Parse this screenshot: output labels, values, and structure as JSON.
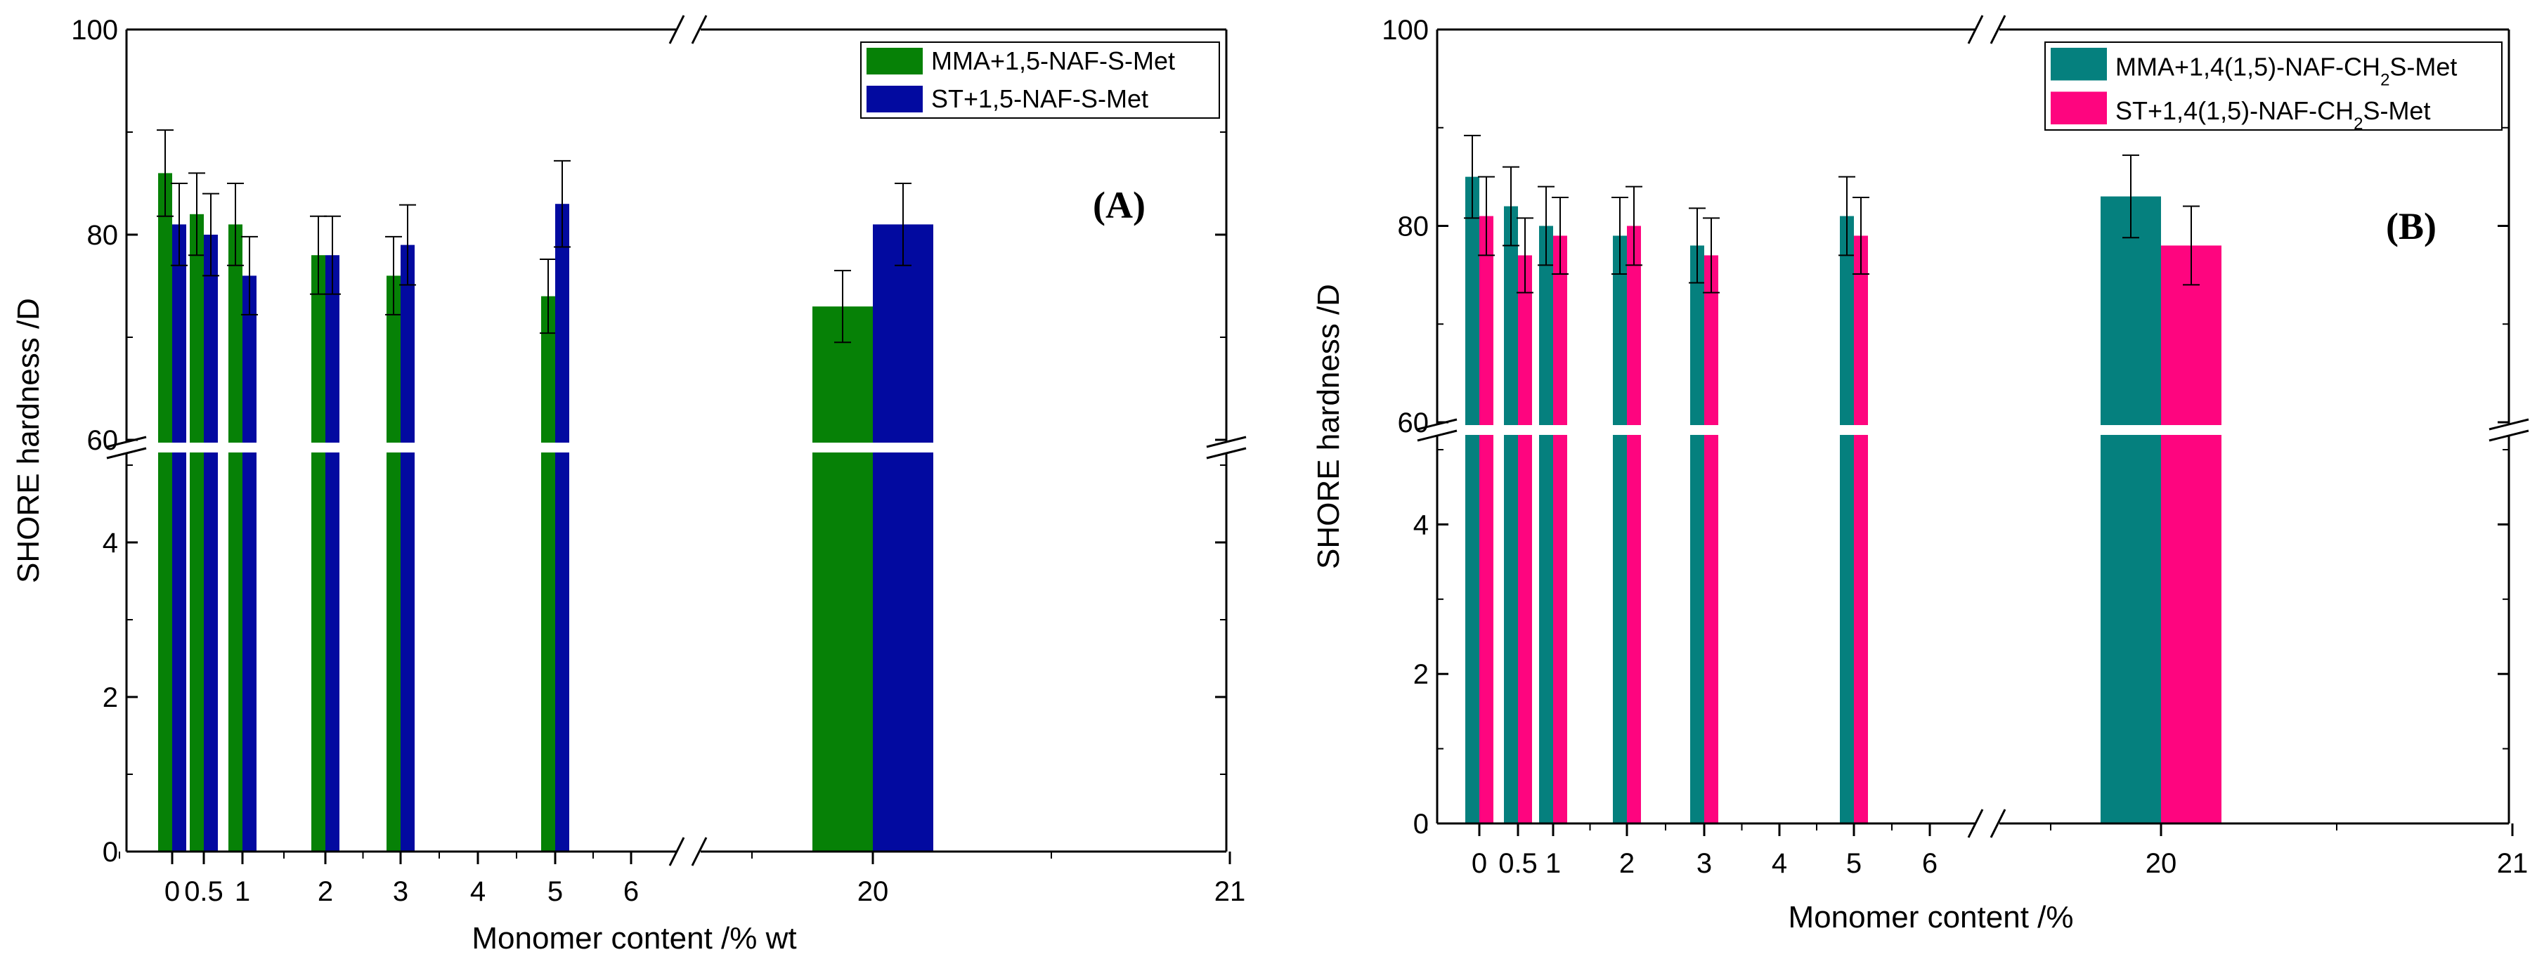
{
  "chart_data": [
    {
      "type": "bar",
      "panel_label": "(A)",
      "ylabel": "SHORE hardness /D",
      "xlabel": "Monomer content /% wt",
      "x_ticks": [
        "0",
        "0.5",
        "1",
        "2",
        "3",
        "4",
        "5",
        "6",
        "20",
        "21"
      ],
      "y_ticks_upper": [
        "60",
        "80",
        "100"
      ],
      "y_ticks_lower": [
        "0",
        "2",
        "4"
      ],
      "ylim_upper": [
        60,
        100
      ],
      "ylim_lower": [
        0,
        5
      ],
      "categories": [
        "0",
        "0.5",
        "1",
        "2",
        "3",
        "5",
        "20"
      ],
      "series": [
        {
          "name": "MMA+1,5-NAF-S-Met",
          "color": "#068106",
          "values": [
            86,
            82,
            81,
            78,
            76,
            74,
            73
          ],
          "errors": [
            4.2,
            4.0,
            4.0,
            3.8,
            3.8,
            3.6,
            3.5
          ]
        },
        {
          "name": "ST+1,5-NAF-S-Met",
          "color": "#020aa0",
          "values": [
            81,
            80,
            76,
            78,
            79,
            83,
            81
          ],
          "errors": [
            4.0,
            4.0,
            3.8,
            3.8,
            3.9,
            4.2,
            4.0
          ]
        }
      ]
    },
    {
      "type": "bar",
      "panel_label": "(B)",
      "ylabel": "SHORE hardness /D",
      "xlabel": "Monomer content /%",
      "x_ticks": [
        "0",
        "0.5",
        "1",
        "2",
        "3",
        "4",
        "5",
        "6",
        "20",
        "21"
      ],
      "y_ticks_upper": [
        "60",
        "80",
        "100"
      ],
      "y_ticks_lower": [
        "0",
        "2",
        "4"
      ],
      "ylim_upper": [
        60,
        100
      ],
      "ylim_lower": [
        0,
        5
      ],
      "categories": [
        "0",
        "0.5",
        "1",
        "2",
        "3",
        "5",
        "20"
      ],
      "series": [
        {
          "name": "MMA+1,4(1,5)-NAF-CH2S-Met",
          "legend_parts": [
            "MMA+1,4(1,5)-NAF-CH",
            "2",
            "S-Met"
          ],
          "color": "#05807e",
          "values": [
            85,
            82,
            80,
            79,
            78,
            81,
            83
          ],
          "errors": [
            4.2,
            4.0,
            4.0,
            3.9,
            3.8,
            4.0,
            4.2
          ]
        },
        {
          "name": "ST+1,4(1,5)-NAF-CH2S-Met",
          "legend_parts": [
            "ST+1,4(1,5)-NAF-CH",
            "2",
            "S-Met"
          ],
          "color": "#fe057f",
          "values": [
            81,
            77,
            79,
            80,
            77,
            79,
            78
          ],
          "errors": [
            4.0,
            3.8,
            3.9,
            4.0,
            3.8,
            3.9,
            4.0
          ]
        }
      ]
    }
  ]
}
